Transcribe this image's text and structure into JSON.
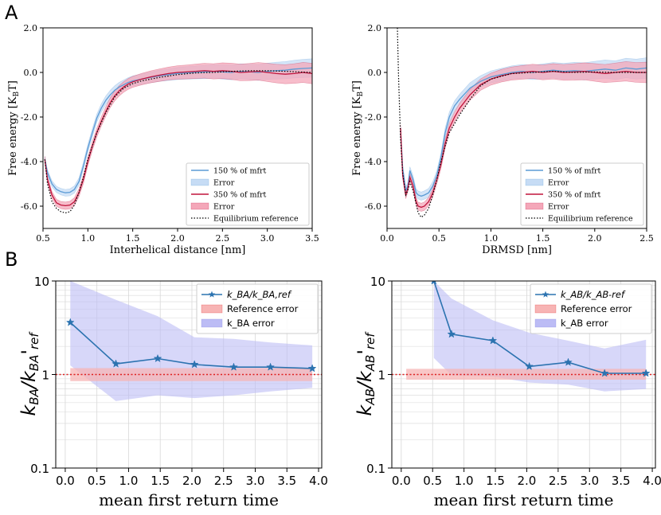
{
  "panel_labels": {
    "a": "A",
    "b": "B"
  },
  "colors": {
    "blue": "#5b9bd5",
    "blue_fill": "#c6dcf5",
    "red": "#c0143c",
    "red_fill": "#f4a7b9",
    "black": "#000000",
    "steel": "#2c73b0",
    "violet_fill": "#bcbcf5",
    "ref_fill": "#f7b4b4",
    "ref_line": "#e02020",
    "grid": "#d8d8d8"
  },
  "chart_data": [
    {
      "id": "A1",
      "type": "line",
      "xlabel": "Interhelical distance [nm]",
      "ylabel": "Free energy [K_BT]",
      "ylabel_main": "Free energy [K",
      "ylabel_sub": "B",
      "ylabel_end": "T]",
      "xlim": [
        0.5,
        3.5
      ],
      "ylim": [
        -7.0,
        2.0
      ],
      "xticks": [
        0.5,
        1.0,
        1.5,
        2.0,
        2.5,
        3.0,
        3.5
      ],
      "xtick_labels": [
        "0.5",
        "1.0",
        "1.5",
        "2.0",
        "2.5",
        "3.0",
        "3.5"
      ],
      "yticks": [
        -6,
        -4,
        -2,
        0,
        2
      ],
      "ytick_labels": [
        "-6.0",
        "-4.0",
        "-2.0",
        "0.0",
        "2.0"
      ],
      "legend": [
        "150 % of mfrt",
        "Error",
        "350 % of mfrt",
        "Error",
        "Equilibrium reference"
      ],
      "legend_position": "lower-right",
      "series": [
        {
          "name": "150 % of mfrt",
          "style": "blue",
          "err": 0.18,
          "x": [
            0.52,
            0.55,
            0.6,
            0.65,
            0.7,
            0.75,
            0.8,
            0.85,
            0.9,
            0.95,
            1.0,
            1.05,
            1.1,
            1.15,
            1.2,
            1.25,
            1.3,
            1.35,
            1.4,
            1.45,
            1.5,
            1.6,
            1.7,
            1.8,
            1.9,
            2.0,
            2.1,
            2.2,
            2.3,
            2.4,
            2.5,
            2.6,
            2.7,
            2.8,
            2.9,
            3.0,
            3.1,
            3.2,
            3.3,
            3.4,
            3.5
          ],
          "y": [
            -3.9,
            -4.5,
            -5.0,
            -5.25,
            -5.35,
            -5.4,
            -5.38,
            -5.25,
            -4.9,
            -4.2,
            -3.4,
            -2.7,
            -2.05,
            -1.6,
            -1.25,
            -1.0,
            -0.8,
            -0.65,
            -0.55,
            -0.45,
            -0.38,
            -0.3,
            -0.22,
            -0.15,
            -0.1,
            -0.05,
            -0.02,
            0.0,
            0.02,
            0.05,
            0.02,
            0.0,
            0.05,
            0.03,
            0.0,
            0.05,
            0.08,
            0.1,
            0.15,
            0.18,
            0.2
          ]
        },
        {
          "name": "350 % of mfrt",
          "style": "red",
          "err": 0.2,
          "x": [
            0.52,
            0.55,
            0.6,
            0.65,
            0.7,
            0.75,
            0.8,
            0.85,
            0.9,
            0.95,
            1.0,
            1.05,
            1.1,
            1.15,
            1.2,
            1.25,
            1.3,
            1.35,
            1.4,
            1.45,
            1.5,
            1.6,
            1.7,
            1.8,
            1.9,
            2.0,
            2.1,
            2.2,
            2.3,
            2.4,
            2.5,
            2.6,
            2.7,
            2.8,
            2.9,
            3.0,
            3.1,
            3.2,
            3.3,
            3.4,
            3.5
          ],
          "y": [
            -3.9,
            -4.8,
            -5.5,
            -5.85,
            -5.95,
            -5.98,
            -5.95,
            -5.8,
            -5.4,
            -4.8,
            -4.0,
            -3.3,
            -2.7,
            -2.2,
            -1.75,
            -1.35,
            -1.05,
            -0.82,
            -0.65,
            -0.52,
            -0.42,
            -0.3,
            -0.2,
            -0.12,
            -0.05,
            0.0,
            0.02,
            0.05,
            0.08,
            0.05,
            0.08,
            0.05,
            0.0,
            0.02,
            0.05,
            0.0,
            -0.05,
            -0.08,
            -0.05,
            0.0,
            -0.05
          ]
        },
        {
          "name": "Equilibrium reference",
          "style": "dotted",
          "x": [
            0.52,
            0.55,
            0.6,
            0.65,
            0.7,
            0.75,
            0.8,
            0.85,
            0.9,
            0.95,
            1.0,
            1.1,
            1.2,
            1.3,
            1.4,
            1.5,
            1.6,
            1.8,
            2.0,
            2.2,
            2.4,
            2.6,
            2.8,
            3.0,
            3.2,
            3.5
          ],
          "y": [
            -3.9,
            -5.0,
            -5.8,
            -6.1,
            -6.25,
            -6.3,
            -6.25,
            -5.95,
            -5.4,
            -4.7,
            -3.9,
            -2.7,
            -1.8,
            -1.1,
            -0.7,
            -0.5,
            -0.38,
            -0.22,
            -0.1,
            -0.02,
            0.0,
            0.05,
            0.08,
            0.08,
            0.05,
            0.0
          ]
        }
      ]
    },
    {
      "id": "A2",
      "type": "line",
      "xlabel": "DRMSD [nm]",
      "ylabel": "Free energy [K_BT]",
      "ylabel_main": "Free energy [K",
      "ylabel_sub": "B",
      "ylabel_end": "T]",
      "xlim": [
        0.0,
        2.5
      ],
      "ylim": [
        -7.0,
        2.0
      ],
      "xticks": [
        0.0,
        0.5,
        1.0,
        1.5,
        2.0,
        2.5
      ],
      "xtick_labels": [
        "0.0",
        "0.5",
        "1.0",
        "1.5",
        "2.0",
        "2.5"
      ],
      "yticks": [
        -6,
        -4,
        -2,
        0,
        2
      ],
      "ytick_labels": [
        "-6.0",
        "-4.0",
        "-2.0",
        "0.0",
        "2.0"
      ],
      "legend": [
        "150 % of mfrt",
        "Error",
        "350 % of mfrt",
        "Error",
        "Equilibrium reference"
      ],
      "legend_position": "lower-right",
      "series": [
        {
          "name": "150 % of mfrt",
          "style": "blue",
          "err": 0.2,
          "x": [
            0.13,
            0.15,
            0.18,
            0.2,
            0.22,
            0.25,
            0.28,
            0.3,
            0.33,
            0.36,
            0.4,
            0.44,
            0.48,
            0.52,
            0.56,
            0.6,
            0.65,
            0.7,
            0.8,
            0.9,
            1.0,
            1.1,
            1.2,
            1.3,
            1.4,
            1.5,
            1.6,
            1.7,
            1.8,
            1.9,
            2.0,
            2.1,
            2.2,
            2.3,
            2.4,
            2.5
          ],
          "y": [
            -2.6,
            -4.3,
            -5.3,
            -5.1,
            -4.4,
            -4.8,
            -5.4,
            -5.5,
            -5.55,
            -5.5,
            -5.4,
            -5.1,
            -4.6,
            -3.8,
            -2.7,
            -2.0,
            -1.5,
            -1.2,
            -0.7,
            -0.4,
            -0.2,
            -0.1,
            0.0,
            0.05,
            0.0,
            0.05,
            0.1,
            0.05,
            0.08,
            0.05,
            0.1,
            0.15,
            0.1,
            0.2,
            0.15,
            0.2
          ]
        },
        {
          "name": "350 % of mfrt",
          "style": "red",
          "err": 0.2,
          "x": [
            0.13,
            0.15,
            0.18,
            0.2,
            0.22,
            0.25,
            0.28,
            0.3,
            0.33,
            0.36,
            0.4,
            0.44,
            0.48,
            0.52,
            0.56,
            0.6,
            0.65,
            0.7,
            0.8,
            0.9,
            1.0,
            1.1,
            1.2,
            1.3,
            1.4,
            1.5,
            1.6,
            1.7,
            1.8,
            1.9,
            2.0,
            2.1,
            2.2,
            2.3,
            2.4,
            2.5
          ],
          "y": [
            -2.5,
            -4.6,
            -5.5,
            -5.2,
            -4.7,
            -5.1,
            -5.8,
            -6.0,
            -6.05,
            -6.0,
            -5.8,
            -5.4,
            -4.8,
            -4.1,
            -3.2,
            -2.5,
            -2.0,
            -1.6,
            -1.0,
            -0.55,
            -0.3,
            -0.15,
            -0.05,
            0.0,
            0.05,
            0.0,
            0.05,
            0.0,
            0.02,
            0.05,
            0.0,
            -0.05,
            0.0,
            0.05,
            0.0,
            0.0
          ]
        },
        {
          "name": "Equilibrium reference",
          "style": "dotted",
          "x": [
            0.1,
            0.11,
            0.12,
            0.13,
            0.15,
            0.18,
            0.2,
            0.22,
            0.25,
            0.28,
            0.3,
            0.33,
            0.36,
            0.4,
            0.44,
            0.48,
            0.52,
            0.56,
            0.6,
            0.7,
            0.8,
            0.9,
            1.0,
            1.2,
            1.4,
            1.6,
            1.8,
            2.0,
            2.2,
            2.5
          ],
          "y": [
            2.0,
            0.0,
            -1.5,
            -3.0,
            -4.5,
            -5.5,
            -5.3,
            -4.9,
            -5.3,
            -5.9,
            -6.3,
            -6.5,
            -6.4,
            -6.1,
            -5.5,
            -4.8,
            -4.0,
            -3.3,
            -2.7,
            -1.9,
            -1.2,
            -0.6,
            -0.3,
            -0.05,
            0.0,
            0.05,
            0.0,
            0.02,
            0.0,
            0.0
          ]
        }
      ]
    },
    {
      "id": "B1",
      "type": "line",
      "yscale": "log",
      "xlabel": "mean first return time",
      "ylabel": "k_BA/k_BA'ref",
      "xlim": [
        -0.15,
        4.05
      ],
      "ylim": [
        0.1,
        10
      ],
      "xticks": [
        0.0,
        0.5,
        1.0,
        1.5,
        2.0,
        2.5,
        3.0,
        3.5,
        4.0
      ],
      "xtick_labels": [
        "0.0",
        "0.5",
        "1.0",
        "1.5",
        "2.0",
        "2.5",
        "3.0",
        "3.5",
        "4.0"
      ],
      "yticks": [
        0.1,
        1,
        10
      ],
      "ytick_labels": [
        "0.1",
        "1",
        "10"
      ],
      "legend": [
        "k_BA/k_BA,ref",
        "Reference error",
        "k_BA error"
      ],
      "legend_position": "top-right",
      "ratio": {
        "x": [
          0.08,
          0.8,
          1.46,
          2.04,
          2.66,
          3.24,
          3.9
        ],
        "y": [
          3.6,
          1.3,
          1.48,
          1.28,
          1.2,
          1.2,
          1.16
        ]
      },
      "error_band": {
        "x": [
          0.08,
          0.8,
          1.46,
          2.04,
          2.66,
          3.24,
          3.9
        ],
        "lower": [
          1.25,
          0.52,
          0.6,
          0.56,
          0.6,
          0.66,
          0.72
        ],
        "upper": [
          10,
          6.3,
          4.2,
          2.5,
          2.4,
          2.2,
          2.05
        ]
      },
      "reference_band": {
        "x": [
          0.08,
          3.9
        ],
        "lower": 0.85,
        "upper": 1.17
      },
      "reference_line": 1.0
    },
    {
      "id": "B2",
      "type": "line",
      "yscale": "log",
      "xlabel": "mean first return time",
      "ylabel": "k_AB/k_AB'ref",
      "xlim": [
        -0.15,
        4.05
      ],
      "ylim": [
        0.1,
        10
      ],
      "xticks": [
        0.0,
        0.5,
        1.0,
        1.5,
        2.0,
        2.5,
        3.0,
        3.5,
        4.0
      ],
      "xtick_labels": [
        "0.0",
        "0.5",
        "1.0",
        "1.5",
        "2.0",
        "2.5",
        "3.0",
        "3.5",
        "4.0"
      ],
      "yticks": [
        0.1,
        1,
        10
      ],
      "ytick_labels": [
        "0.1",
        "1",
        "10"
      ],
      "legend": [
        "k_AB/k_AB-ref",
        "Reference error",
        "k_AB error"
      ],
      "legend_position": "top-right",
      "ratio": {
        "x": [
          0.52,
          0.8,
          1.46,
          2.04,
          2.66,
          3.24,
          3.9
        ],
        "y": [
          10,
          2.7,
          2.3,
          1.22,
          1.35,
          1.03,
          1.03
        ]
      },
      "error_band": {
        "x": [
          0.52,
          0.8,
          1.46,
          2.04,
          2.66,
          3.24,
          3.9
        ],
        "lower": [
          1.5,
          0.98,
          0.95,
          0.82,
          0.78,
          0.66,
          0.7
        ],
        "upper": [
          10,
          6.5,
          3.8,
          2.8,
          2.3,
          1.9,
          2.35
        ]
      },
      "reference_band": {
        "x": [
          0.08,
          3.9
        ],
        "lower": 0.88,
        "upper": 1.15
      },
      "reference_line": 1.0
    }
  ]
}
